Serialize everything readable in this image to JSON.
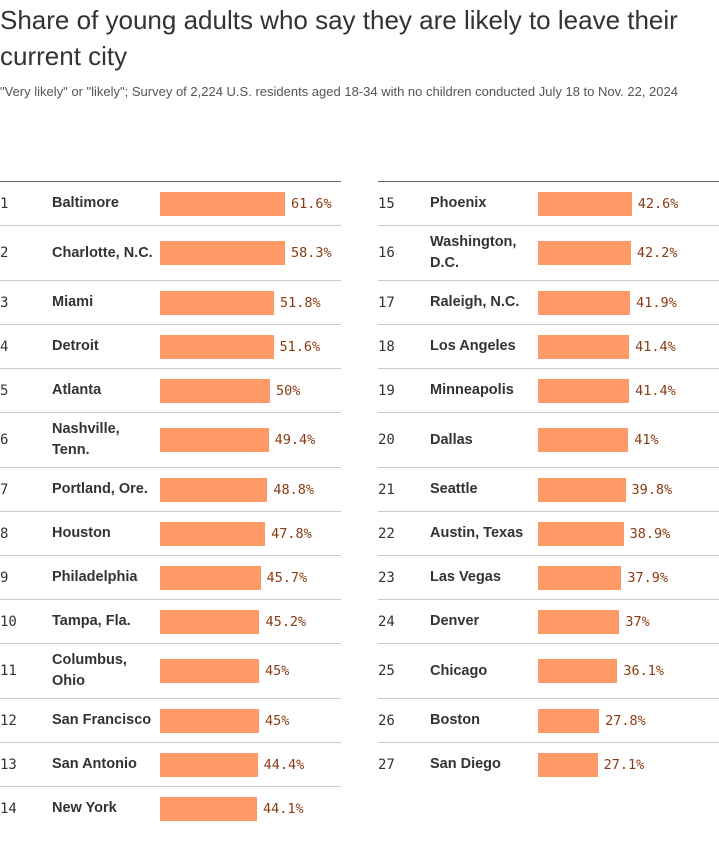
{
  "chart_data": {
    "type": "bar",
    "title": "Share of young adults who say they are likely to leave their current city",
    "subtitle": "\"Very likely\" or \"likely\"; Survey of 2,224 U.S. residents aged 18-34 with no children conducted July 18 to Nov. 22, 2024",
    "bar_color": "#ff9966",
    "label_color": "#8a3b12",
    "rows": [
      {
        "rank": "1",
        "city": "Baltimore",
        "value": 61.6,
        "label": "61.6%"
      },
      {
        "rank": "2",
        "city": "Charlotte, N.C.",
        "value": 58.3,
        "label": "58.3%"
      },
      {
        "rank": "3",
        "city": "Miami",
        "value": 51.8,
        "label": "51.8%"
      },
      {
        "rank": "4",
        "city": "Detroit",
        "value": 51.6,
        "label": "51.6%"
      },
      {
        "rank": "5",
        "city": "Atlanta",
        "value": 50,
        "label": "50%"
      },
      {
        "rank": "6",
        "city": "Nashville, Tenn.",
        "value": 49.4,
        "label": "49.4%"
      },
      {
        "rank": "7",
        "city": "Portland, Ore.",
        "value": 48.8,
        "label": "48.8%"
      },
      {
        "rank": "8",
        "city": "Houston",
        "value": 47.8,
        "label": "47.8%"
      },
      {
        "rank": "9",
        "city": "Philadelphia",
        "value": 45.7,
        "label": "45.7%"
      },
      {
        "rank": "10",
        "city": "Tampa, Fla.",
        "value": 45.2,
        "label": "45.2%"
      },
      {
        "rank": "11",
        "city": "Columbus, Ohio",
        "value": 45,
        "label": "45%"
      },
      {
        "rank": "12",
        "city": "San Francisco",
        "value": 45,
        "label": "45%"
      },
      {
        "rank": "13",
        "city": "San Antonio",
        "value": 44.4,
        "label": "44.4%"
      },
      {
        "rank": "14",
        "city": "New York",
        "value": 44.1,
        "label": "44.1%"
      },
      {
        "rank": "15",
        "city": "Phoenix",
        "value": 42.6,
        "label": "42.6%"
      },
      {
        "rank": "16",
        "city": "Washington, D.C.",
        "value": 42.2,
        "label": "42.2%"
      },
      {
        "rank": "17",
        "city": "Raleigh, N.C.",
        "value": 41.9,
        "label": "41.9%"
      },
      {
        "rank": "18",
        "city": "Los Angeles",
        "value": 41.4,
        "label": "41.4%"
      },
      {
        "rank": "19",
        "city": "Minneapolis",
        "value": 41.4,
        "label": "41.4%"
      },
      {
        "rank": "20",
        "city": "Dallas",
        "value": 41,
        "label": "41%"
      },
      {
        "rank": "21",
        "city": "Seattle",
        "value": 39.8,
        "label": "39.8%"
      },
      {
        "rank": "22",
        "city": "Austin, Texas",
        "value": 38.9,
        "label": "38.9%"
      },
      {
        "rank": "23",
        "city": "Las Vegas",
        "value": 37.9,
        "label": "37.9%"
      },
      {
        "rank": "24",
        "city": "Denver",
        "value": 37,
        "label": "37%"
      },
      {
        "rank": "25",
        "city": "Chicago",
        "value": 36.1,
        "label": "36.1%"
      },
      {
        "rank": "26",
        "city": "Boston",
        "value": 27.8,
        "label": "27.8%"
      },
      {
        "rank": "27",
        "city": "San Diego",
        "value": 27.1,
        "label": "27.1%"
      }
    ]
  }
}
